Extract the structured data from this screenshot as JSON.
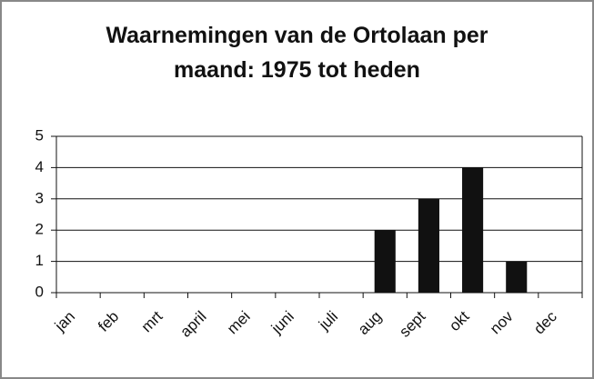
{
  "chart_data": {
    "type": "bar",
    "title": "Waarnemingen van de Ortolaan per maand: 1975 tot heden",
    "categories": [
      "jan",
      "feb",
      "mrt",
      "april",
      "mei",
      "juni",
      "juli",
      "aug",
      "sept",
      "okt",
      "nov",
      "dec"
    ],
    "values": [
      0,
      0,
      0,
      0,
      0,
      0,
      0,
      2,
      3,
      4,
      1,
      0
    ],
    "color": "#111111",
    "ylim": [
      0,
      5
    ],
    "yticks": [
      0,
      1,
      2,
      3,
      4,
      5
    ],
    "grid": true
  }
}
